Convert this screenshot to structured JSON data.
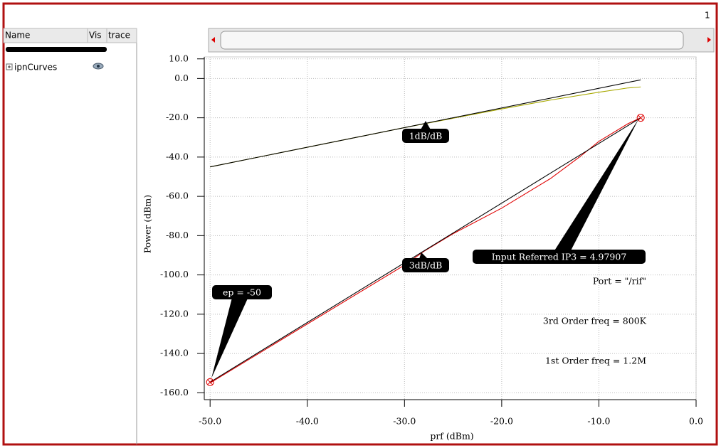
{
  "ui": {
    "page_number": "1",
    "columns": [
      "Name",
      "Vis",
      "trace"
    ],
    "tree": [
      "ipnCurves"
    ]
  },
  "chart_data": {
    "type": "line",
    "xlabel": "prf (dBm)",
    "ylabel": "Power (dBm)",
    "xlim": [
      -50.6,
      0
    ],
    "ylim": [
      -163.5,
      11
    ],
    "xticks": [
      {
        "value": -50,
        "label": "-50.0"
      },
      {
        "value": -40,
        "label": "-40.0"
      },
      {
        "value": -30,
        "label": "-30.0"
      },
      {
        "value": -20,
        "label": "-20.0"
      },
      {
        "value": -10,
        "label": "-10.0"
      },
      {
        "value": 0,
        "label": "0.0"
      }
    ],
    "yticks": [
      {
        "value": 10,
        "label": "10.0"
      },
      {
        "value": 0,
        "label": "0.0"
      },
      {
        "value": -20,
        "label": "-20.0"
      },
      {
        "value": -40,
        "label": "-40.0"
      },
      {
        "value": -60,
        "label": "-60.0"
      },
      {
        "value": -80,
        "label": "-80.0"
      },
      {
        "value": -100,
        "label": "-100.0"
      },
      {
        "value": -120,
        "label": "-120.0"
      },
      {
        "value": -140,
        "label": "-140.0"
      },
      {
        "value": -160,
        "label": "-160.0"
      }
    ],
    "grid": true,
    "series": [
      {
        "color": "#a8a800",
        "x": [
          -50,
          -40,
          -30,
          -20,
          -15,
          -10,
          -7,
          -5.7
        ],
        "values": [
          -45,
          -35,
          -25,
          -15.5,
          -11,
          -7,
          -4.8,
          -4.3
        ]
      },
      {
        "color": "#000000",
        "x": [
          -50,
          -5.7
        ],
        "values": [
          -45,
          -0.7
        ]
      },
      {
        "color": "#e00000",
        "x": [
          -50,
          -40,
          -30,
          -28,
          -25,
          -20,
          -15,
          -12,
          -10,
          -7,
          -5.7
        ],
        "values": [
          -155,
          -125,
          -95,
          -88,
          -79,
          -66,
          -51,
          -40,
          -32,
          -23,
          -20
        ]
      },
      {
        "color": "#000000",
        "x": [
          -50,
          -5.7
        ],
        "values": [
          -154.6,
          -20
        ]
      }
    ],
    "markers": {
      "color": "#e00000",
      "x": [
        -50,
        -5.7
      ],
      "values": [
        -154.6,
        -20
      ]
    },
    "callouts": [
      "1dB/dB",
      "3dB/dB",
      "Input Referred IP3 = 4.97907",
      "ep = -50"
    ],
    "notes": [
      "Port = \"/rif\"",
      "3rd Order freq = 800K",
      "1st Order freq = 1.2M"
    ]
  }
}
